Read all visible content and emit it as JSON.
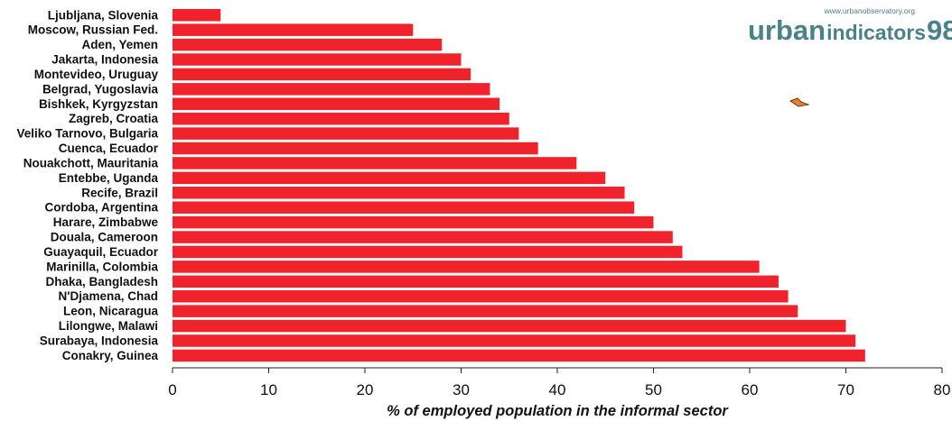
{
  "chart_data": {
    "type": "bar",
    "orientation": "horizontal",
    "categories": [
      "Ljubljana, Slovenia",
      "Moscow, Russian Fed.",
      "Aden, Yemen",
      "Jakarta, Indonesia",
      "Montevideo, Uruguay",
      "Belgrad, Yugoslavia",
      "Bishkek, Kyrgyzstan",
      "Zagreb, Croatia",
      "Veliko Tarnovo, Bulgaria",
      "Cuenca, Ecuador",
      "Nouakchott, Mauritania",
      "Entebbe, Uganda",
      "Recife, Brazil",
      "Cordoba, Argentina",
      "Harare, Zimbabwe",
      "Douala, Cameroon",
      "Guayaquil, Ecuador",
      "Marinilla, Colombia",
      "Dhaka, Bangladesh",
      "N'Djamena, Chad",
      "Leon, Nicaragua",
      "Lilongwe, Malawi",
      "Surabaya, Indonesia",
      "Conakry, Guinea"
    ],
    "values": [
      5,
      25,
      28,
      30,
      31,
      33,
      34,
      35,
      36,
      38,
      42,
      45,
      47,
      48,
      50,
      52,
      53,
      61,
      63,
      64,
      65,
      70,
      71,
      72
    ],
    "xlabel": "% of employed population in the informal sector",
    "xlim": [
      0,
      80
    ],
    "xticks": [
      0,
      10,
      20,
      30,
      40,
      50,
      60,
      70,
      80
    ],
    "grid": false,
    "bar_color": "#f0222c"
  },
  "logo": {
    "url": "www.urbanobservatory.org",
    "word_urban": "urban",
    "word_indicators": "indicators",
    "word_year": "98",
    "color": "#4a8289"
  },
  "marker": {
    "color": "#e8812f",
    "icon": "arrow-marker-icon"
  }
}
